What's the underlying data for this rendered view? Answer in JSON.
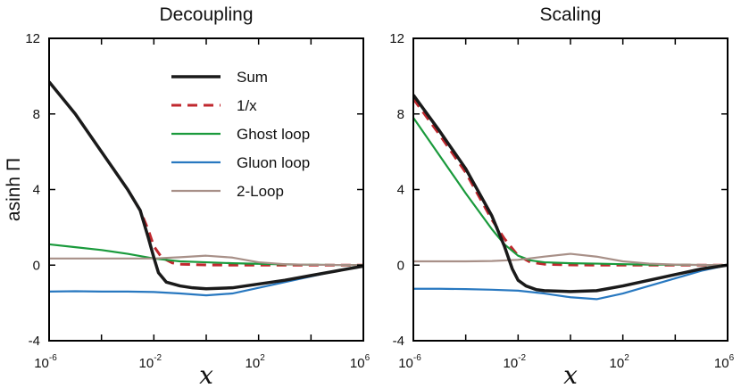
{
  "chart_data": [
    {
      "type": "line",
      "title": "Decoupling",
      "xlabel": "x",
      "ylabel": "asinh Π",
      "xscale": "log",
      "xlim": [
        1e-06,
        1000000.0
      ],
      "ylim": [
        -4,
        12
      ],
      "xticks": [
        {
          "base": "10",
          "exp": "-6"
        },
        {
          "base": "10",
          "exp": "-2"
        },
        {
          "base": "10",
          "exp": "2"
        },
        {
          "base": "10",
          "exp": "6"
        }
      ],
      "yticks": [
        "-4",
        "0",
        "4",
        "8",
        "12"
      ],
      "grid": false,
      "legend": "top-center",
      "series": [
        {
          "name": "Sum",
          "color": "#1a1a1a",
          "dash": "solid",
          "x": [
            1e-06,
            1e-05,
            0.0001,
            0.001,
            0.003,
            0.006,
            0.01,
            0.015,
            0.03,
            0.1,
            0.3,
            1,
            10,
            100,
            1000,
            10000,
            100000,
            1000000
          ],
          "y": [
            9.7,
            8.0,
            6.0,
            4.0,
            2.9,
            1.5,
            0.4,
            -0.4,
            -0.9,
            -1.1,
            -1.2,
            -1.25,
            -1.2,
            -1.0,
            -0.8,
            -0.55,
            -0.3,
            -0.05
          ]
        },
        {
          "name": "1/x",
          "color": "#c0282e",
          "dash": "dashed",
          "x": [
            0.001,
            0.003,
            0.006,
            0.01,
            0.02,
            0.05,
            0.1,
            1,
            10,
            100,
            1000,
            10000,
            100000,
            1000000
          ],
          "y": [
            4.0,
            2.9,
            1.9,
            1.0,
            0.4,
            0.12,
            0.05,
            0.01,
            0.0,
            0.0,
            0.0,
            0.0,
            0.0,
            0.0
          ]
        },
        {
          "name": "Ghost loop",
          "color": "#1a9a3c",
          "dash": "solid",
          "x": [
            1e-06,
            1e-05,
            0.0001,
            0.001,
            0.01,
            0.1,
            1,
            10,
            100,
            1000,
            10000,
            100000,
            1000000
          ],
          "y": [
            1.1,
            0.95,
            0.8,
            0.6,
            0.35,
            0.2,
            0.15,
            0.1,
            0.07,
            0.04,
            0.02,
            0.01,
            0.0
          ]
        },
        {
          "name": "Gluon loop",
          "color": "#2878c0",
          "dash": "solid",
          "x": [
            1e-06,
            1e-05,
            0.0001,
            0.001,
            0.01,
            0.1,
            1,
            10,
            100,
            1000,
            10000,
            100000,
            1000000
          ],
          "y": [
            -1.4,
            -1.38,
            -1.4,
            -1.4,
            -1.42,
            -1.5,
            -1.6,
            -1.5,
            -1.2,
            -0.9,
            -0.6,
            -0.3,
            -0.05
          ]
        },
        {
          "name": "2-Loop",
          "color": "#a89088",
          "dash": "solid",
          "x": [
            1e-06,
            1e-05,
            0.0001,
            0.001,
            0.01,
            0.1,
            1,
            10,
            100,
            1000,
            10000,
            100000,
            1000000
          ],
          "y": [
            0.35,
            0.35,
            0.35,
            0.35,
            0.35,
            0.42,
            0.5,
            0.4,
            0.15,
            0.05,
            0.02,
            0.01,
            0.0
          ]
        }
      ]
    },
    {
      "type": "line",
      "title": "Scaling",
      "xlabel": "x",
      "ylabel": "",
      "xscale": "log",
      "xlim": [
        1e-06,
        1000000.0
      ],
      "ylim": [
        -4,
        12
      ],
      "xticks": [
        {
          "base": "10",
          "exp": "-6"
        },
        {
          "base": "10",
          "exp": "-2"
        },
        {
          "base": "10",
          "exp": "2"
        },
        {
          "base": "10",
          "exp": "6"
        }
      ],
      "yticks": [
        "-4",
        "0",
        "4",
        "8",
        "12"
      ],
      "grid": false,
      "legend": "none",
      "series": [
        {
          "name": "Sum",
          "color": "#1a1a1a",
          "dash": "solid",
          "x": [
            1e-06,
            1e-05,
            0.0001,
            0.001,
            0.003,
            0.006,
            0.01,
            0.02,
            0.05,
            0.1,
            1,
            10,
            100,
            1000,
            10000,
            100000,
            1000000
          ],
          "y": [
            9.0,
            7.1,
            5.1,
            2.6,
            1.0,
            -0.2,
            -0.8,
            -1.1,
            -1.3,
            -1.35,
            -1.4,
            -1.35,
            -1.1,
            -0.8,
            -0.5,
            -0.2,
            0.0
          ]
        },
        {
          "name": "1/x",
          "color": "#c0282e",
          "dash": "dashed",
          "x": [
            1e-06,
            1e-05,
            0.0001,
            0.001,
            0.003,
            0.01,
            0.03,
            0.1,
            1,
            10,
            100,
            1000,
            10000,
            100000,
            1000000
          ],
          "y": [
            8.8,
            6.9,
            4.9,
            2.4,
            1.4,
            0.5,
            0.15,
            0.05,
            0.01,
            0.0,
            0.0,
            0.0,
            0.0,
            0.0,
            0.0
          ]
        },
        {
          "name": "Ghost loop",
          "color": "#1a9a3c",
          "dash": "solid",
          "x": [
            1e-06,
            1e-05,
            0.0001,
            0.001,
            0.003,
            0.01,
            0.03,
            0.1,
            1,
            10,
            100,
            1000,
            10000,
            100000,
            1000000
          ],
          "y": [
            7.8,
            5.8,
            3.8,
            1.9,
            1.1,
            0.5,
            0.25,
            0.15,
            0.1,
            0.08,
            0.05,
            0.03,
            0.02,
            0.01,
            0.0
          ]
        },
        {
          "name": "Gluon loop",
          "color": "#2878c0",
          "dash": "solid",
          "x": [
            1e-06,
            1e-05,
            0.0001,
            0.001,
            0.01,
            0.1,
            1,
            10,
            100,
            1000,
            10000,
            100000,
            1000000
          ],
          "y": [
            -1.25,
            -1.25,
            -1.27,
            -1.3,
            -1.35,
            -1.5,
            -1.7,
            -1.8,
            -1.5,
            -1.1,
            -0.7,
            -0.3,
            0.0
          ]
        },
        {
          "name": "2-Loop",
          "color": "#a89088",
          "dash": "solid",
          "x": [
            1e-06,
            1e-05,
            0.0001,
            0.001,
            0.01,
            0.1,
            1,
            10,
            100,
            1000,
            10000,
            100000,
            1000000
          ],
          "y": [
            0.2,
            0.2,
            0.2,
            0.22,
            0.28,
            0.45,
            0.6,
            0.45,
            0.2,
            0.08,
            0.03,
            0.01,
            0.0
          ]
        }
      ]
    }
  ]
}
